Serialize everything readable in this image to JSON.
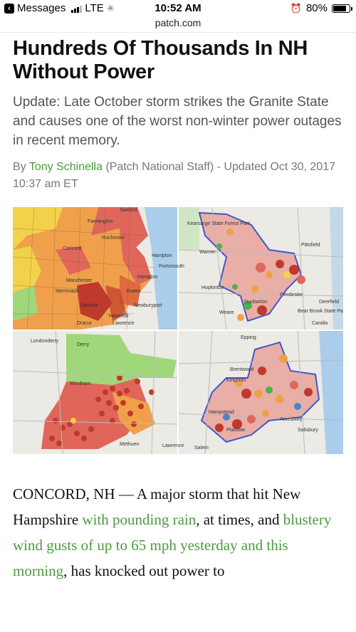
{
  "status_bar": {
    "carrier": "Messages",
    "network": "LTE",
    "time": "10:52 AM",
    "battery_percent": "80%",
    "battery_level": 0.8
  },
  "browser": {
    "url": "patch.com"
  },
  "article": {
    "headline": "Hundreds Of Thousands In NH Without Power",
    "dek": "Update: Late October storm strikes the Granite State and causes one of the worst non-winter power outages in recent memory.",
    "byline": {
      "prefix": "By ",
      "author": "Tony Schinella",
      "affiliation": " (Patch National Staff) - Updated Oct 30, 2017 10:37 am ET"
    },
    "map_image": {
      "labels": [
        "Sanford",
        "Farmington",
        "Rochester",
        "Concord",
        "Manchester",
        "Merrimack",
        "Nashua",
        "Portsmouth",
        "Hampton",
        "Exeter",
        "Newburyport",
        "Haverhill",
        "Lawrence",
        "Dracut",
        "Kearsarge State Forest Park",
        "Pittsfield",
        "Pembroke",
        "Hopkinton",
        "Bear Brook State Park",
        "Dunbarton",
        "Weare",
        "Deerfield",
        "Candia",
        "Epping",
        "Kingston",
        "Hampstead",
        "Plaistow",
        "Amesbury",
        "Salisbury",
        "Methuen",
        "Londonderry",
        "Windham",
        "Derry",
        "Brentwood",
        "Salem",
        "Lawrence",
        "Warner",
        "Hampton"
      ],
      "colors": {
        "water": "#a9cdea",
        "land": "#eceae4",
        "outage_red": "#e0665c",
        "outage_orange": "#f0a04b",
        "outage_yellow": "#f2d24a",
        "outage_green": "#9fd77a",
        "polygon_fill": "#e89a92",
        "polygon_stroke": "#4455cc",
        "pin": "#c0392b"
      }
    },
    "body": {
      "t1": "CONCORD, NH — A major storm that hit New Hampshire ",
      "link1": "with pounding rain",
      "t2": ", at times, and ",
      "link2": "blustery wind gusts of up to 65 mph yesterday and this morning",
      "t3": ", has knocked out power to"
    }
  }
}
